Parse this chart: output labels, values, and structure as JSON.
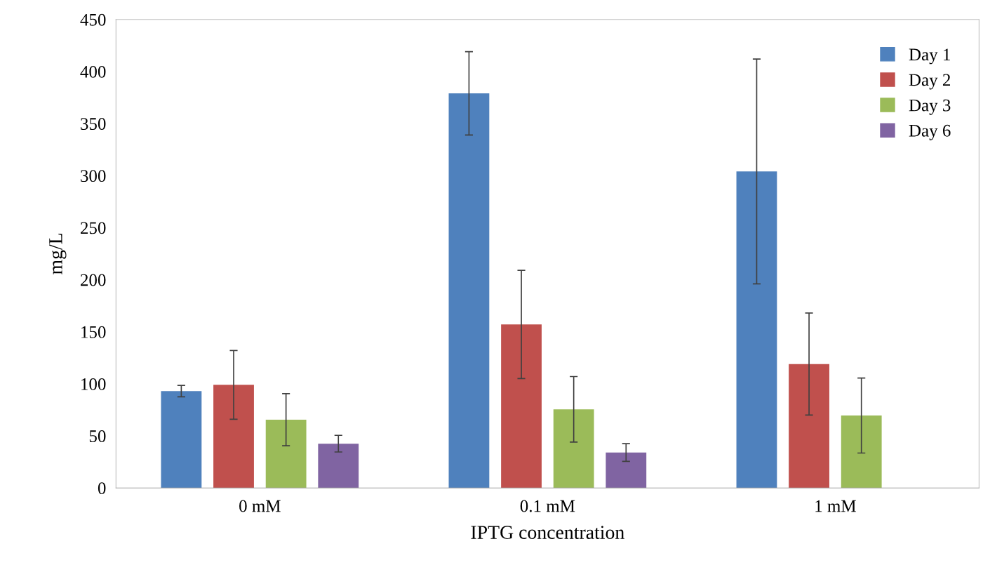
{
  "chart_data": {
    "type": "bar",
    "xlabel": "IPTG concentration",
    "ylabel": "mg/L",
    "categories": [
      "0 mM",
      "0.1 mM",
      "1 mM"
    ],
    "series": [
      {
        "name": "Day 1",
        "color": "#4f81bd",
        "values": [
          93,
          379,
          304
        ],
        "errors": [
          5.5,
          40,
          108
        ]
      },
      {
        "name": "Day 2",
        "color": "#c0504d",
        "values": [
          99,
          157,
          119
        ],
        "errors": [
          33,
          52,
          49
        ]
      },
      {
        "name": "Day 3",
        "color": "#9bbb59",
        "values": [
          65.5,
          75.5,
          69.5
        ],
        "errors": [
          25,
          31.5,
          36
        ]
      },
      {
        "name": "Day 6",
        "color": "#8064a2",
        "values": [
          42.5,
          34,
          null
        ],
        "errors": [
          8,
          8.5,
          null
        ]
      }
    ],
    "ylim": [
      0,
      450
    ],
    "yticks": [
      0,
      50,
      100,
      150,
      200,
      250,
      300,
      350,
      400,
      450
    ],
    "grid": false,
    "legend": "top right"
  }
}
